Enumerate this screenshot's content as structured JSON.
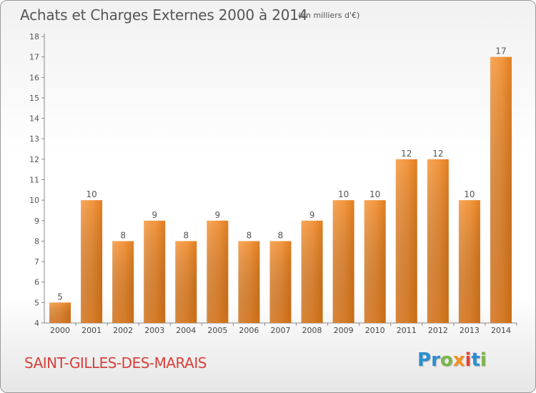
{
  "title": "Achats et Charges Externes 2000 à 2014",
  "unit_note": "(en milliers d'€)",
  "location": "SAINT-GILLES-DES-MARAIS",
  "brand": {
    "text": "Proxiti",
    "letters": [
      {
        "char": "P",
        "color": "#2a8fd0"
      },
      {
        "char": "r",
        "color": "#2a8fd0"
      },
      {
        "char": "o",
        "color": "#7ab648"
      },
      {
        "char": "x",
        "color": "#f29222"
      },
      {
        "char": "i",
        "color": "#e0413a"
      },
      {
        "char": "t",
        "color": "#2a8fd0"
      },
      {
        "char": "i",
        "color": "#7ab648"
      }
    ]
  },
  "colors": {
    "bar_light": "#f6a65a",
    "bar_dark": "#d97314",
    "title": "#555555",
    "location": "#d7413a"
  },
  "chart_data": {
    "type": "bar",
    "title": "Achats et Charges Externes 2000 à 2014",
    "categories": [
      "2000",
      "2001",
      "2002",
      "2003",
      "2004",
      "2005",
      "2006",
      "2007",
      "2008",
      "2009",
      "2010",
      "2011",
      "2012",
      "2013",
      "2014"
    ],
    "values": [
      5,
      10,
      8,
      9,
      8,
      9,
      8,
      8,
      9,
      10,
      10,
      12,
      12,
      10,
      17
    ],
    "ylim": [
      4,
      18
    ],
    "yticks": [
      4,
      5,
      6,
      7,
      8,
      9,
      10,
      11,
      12,
      13,
      14,
      15,
      16,
      17,
      18
    ],
    "grid": false,
    "data_labels": true
  }
}
